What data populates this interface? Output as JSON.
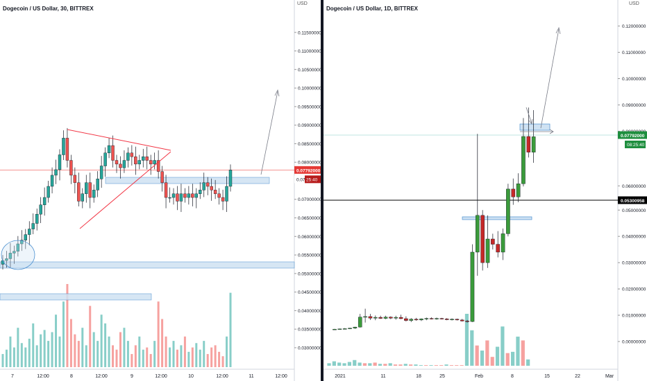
{
  "left_chart": {
    "title": "Dogecoin / US Dollar, 30, BITTREX",
    "currency": "USD",
    "price_label": "0.07792000",
    "countdown": "25:40",
    "countdown_prefix": "0.07",
    "colors": {
      "up": "#26a69a",
      "down": "#ef5350",
      "box_fill": "#cfe2f3",
      "box_stroke": "#4a8fd0",
      "pattern": "#f23645",
      "arrow": "#787b86"
    }
  },
  "right_chart": {
    "title": "Dogecoin / US Dollar, 1D, BITTREX",
    "currency": "USD",
    "price_label": "0.07792000",
    "countdown": "08:25:40",
    "level_label": "0.05300958",
    "colors": {
      "up": "#26a69a",
      "down": "#ef5350",
      "candle_up": "#3b9b3b",
      "candle_down": "#c62828",
      "box_fill": "#cfe2f3",
      "box_stroke": "#4a8fd0",
      "level_line": "#000000"
    }
  },
  "chart_data": [
    {
      "type": "candlestick",
      "title": "Dogecoin / US Dollar, 30, BITTREX",
      "x_tick_labels": [
        "7",
        "12:00",
        "8",
        "12:00",
        "9",
        "12:00",
        "10",
        "12:00",
        "11",
        "12:00"
      ],
      "y_tick_labels": [
        "0.11500000",
        "0.11000000",
        "0.10500000",
        "0.10000000",
        "0.09500000",
        "0.09000000",
        "0.08500000",
        "0.08000000",
        "0.07500000",
        "0.07000000",
        "0.06500000",
        "0.06000000",
        "0.05500000",
        "0.05000000",
        "0.04500000",
        "0.04000000",
        "0.03500000",
        "0.03000000"
      ],
      "ylim": [
        0.027,
        0.12
      ],
      "current_price": 0.07792,
      "close_series": [
        0.0535,
        0.054,
        0.0555,
        0.056,
        0.058,
        0.059,
        0.0605,
        0.062,
        0.0635,
        0.066,
        0.0685,
        0.0705,
        0.0735,
        0.0765,
        0.078,
        0.082,
        0.0865,
        0.0805,
        0.0765,
        0.0745,
        0.0695,
        0.0715,
        0.0745,
        0.0705,
        0.0725,
        0.0755,
        0.079,
        0.0825,
        0.0845,
        0.0805,
        0.0795,
        0.0785,
        0.0805,
        0.0825,
        0.0815,
        0.0795,
        0.0805,
        0.0815,
        0.0805,
        0.0795,
        0.0805,
        0.0775,
        0.0745,
        0.0705,
        0.0705,
        0.0715,
        0.0695,
        0.0715,
        0.0705,
        0.0715,
        0.0705,
        0.0715,
        0.0725,
        0.0745,
        0.0735,
        0.0725,
        0.0715,
        0.0705,
        0.0695,
        0.0735,
        0.0779
      ],
      "volume": [
        6,
        8,
        14,
        9,
        18,
        11,
        9,
        13,
        20,
        10,
        15,
        17,
        12,
        16,
        24,
        14,
        30,
        38,
        22,
        15,
        12,
        18,
        10,
        28,
        16,
        12,
        24,
        20,
        14,
        10,
        8,
        16,
        18,
        12,
        6,
        10,
        14,
        8,
        9,
        6,
        12,
        30,
        22,
        14,
        9,
        12,
        8,
        10,
        14,
        7,
        9,
        11,
        8,
        12,
        6,
        9,
        10,
        7,
        5,
        14,
        34
      ]
    },
    {
      "type": "candlestick",
      "title": "Dogecoin / US Dollar, 1D, BITTREX",
      "x_tick_labels": [
        "2021",
        "11",
        "18",
        "25",
        "Feb",
        "8",
        "15",
        "22",
        "Mar"
      ],
      "y_tick_labels": [
        "0.12000000",
        "0.11000000",
        "0.10000000",
        "0.09000000",
        "0.08000000",
        "0.06000000",
        "0.05000000",
        "0.04000000",
        "0.03000000",
        "0.02000000",
        "0.01000000",
        "0.00000000"
      ],
      "ylim": [
        -0.008,
        0.125
      ],
      "current_price": 0.07792,
      "level": 0.05300958,
      "candles": [
        {
          "o": 0.0047,
          "h": 0.0048,
          "l": 0.0046,
          "c": 0.0047
        },
        {
          "o": 0.0047,
          "h": 0.0049,
          "l": 0.0045,
          "c": 0.0048
        },
        {
          "o": 0.0048,
          "h": 0.0051,
          "l": 0.0046,
          "c": 0.0049
        },
        {
          "o": 0.0049,
          "h": 0.0052,
          "l": 0.0047,
          "c": 0.0051
        },
        {
          "o": 0.0051,
          "h": 0.0056,
          "l": 0.0048,
          "c": 0.0055
        },
        {
          "o": 0.0055,
          "h": 0.0105,
          "l": 0.0053,
          "c": 0.0093
        },
        {
          "o": 0.0093,
          "h": 0.0125,
          "l": 0.0072,
          "c": 0.0095
        },
        {
          "o": 0.0095,
          "h": 0.0105,
          "l": 0.0082,
          "c": 0.0089
        },
        {
          "o": 0.0089,
          "h": 0.0099,
          "l": 0.0081,
          "c": 0.0092
        },
        {
          "o": 0.0092,
          "h": 0.0098,
          "l": 0.0086,
          "c": 0.0088
        },
        {
          "o": 0.0088,
          "h": 0.0098,
          "l": 0.0085,
          "c": 0.0093
        },
        {
          "o": 0.0093,
          "h": 0.0096,
          "l": 0.0085,
          "c": 0.0089
        },
        {
          "o": 0.0089,
          "h": 0.0098,
          "l": 0.0083,
          "c": 0.0092
        },
        {
          "o": 0.0092,
          "h": 0.0102,
          "l": 0.0085,
          "c": 0.0087
        },
        {
          "o": 0.0087,
          "h": 0.0096,
          "l": 0.0076,
          "c": 0.008
        },
        {
          "o": 0.008,
          "h": 0.0089,
          "l": 0.0074,
          "c": 0.0085
        },
        {
          "o": 0.0085,
          "h": 0.009,
          "l": 0.0079,
          "c": 0.0082
        },
        {
          "o": 0.0082,
          "h": 0.0088,
          "l": 0.0078,
          "c": 0.0086
        },
        {
          "o": 0.0086,
          "h": 0.0091,
          "l": 0.0081,
          "c": 0.0088
        },
        {
          "o": 0.0088,
          "h": 0.0092,
          "l": 0.0084,
          "c": 0.0086
        },
        {
          "o": 0.0086,
          "h": 0.0091,
          "l": 0.0083,
          "c": 0.0088
        },
        {
          "o": 0.0088,
          "h": 0.009,
          "l": 0.0084,
          "c": 0.0086
        },
        {
          "o": 0.0086,
          "h": 0.0089,
          "l": 0.0081,
          "c": 0.0083
        },
        {
          "o": 0.0083,
          "h": 0.0088,
          "l": 0.008,
          "c": 0.0085
        },
        {
          "o": 0.0085,
          "h": 0.0087,
          "l": 0.008,
          "c": 0.0082
        },
        {
          "o": 0.0082,
          "h": 0.0086,
          "l": 0.0076,
          "c": 0.0078
        },
        {
          "o": 0.0078,
          "h": 0.0082,
          "l": 0.0072,
          "c": 0.0076
        },
        {
          "o": 0.0076,
          "h": 0.037,
          "l": 0.0074,
          "c": 0.034
        },
        {
          "o": 0.034,
          "h": 0.079,
          "l": 0.025,
          "c": 0.048
        },
        {
          "o": 0.048,
          "h": 0.05,
          "l": 0.027,
          "c": 0.03
        },
        {
          "o": 0.03,
          "h": 0.048,
          "l": 0.028,
          "c": 0.039
        },
        {
          "o": 0.039,
          "h": 0.041,
          "l": 0.035,
          "c": 0.037
        },
        {
          "o": 0.037,
          "h": 0.042,
          "l": 0.032,
          "c": 0.034
        },
        {
          "o": 0.034,
          "h": 0.043,
          "l": 0.031,
          "c": 0.041
        },
        {
          "o": 0.041,
          "h": 0.06,
          "l": 0.04,
          "c": 0.058
        },
        {
          "o": 0.058,
          "h": 0.062,
          "l": 0.052,
          "c": 0.055
        },
        {
          "o": 0.055,
          "h": 0.064,
          "l": 0.053,
          "c": 0.06
        },
        {
          "o": 0.06,
          "h": 0.085,
          "l": 0.059,
          "c": 0.078
        },
        {
          "o": 0.078,
          "h": 0.089,
          "l": 0.07,
          "c": 0.072
        },
        {
          "o": 0.072,
          "h": 0.088,
          "l": 0.068,
          "c": 0.0779
        }
      ],
      "volume": [
        4,
        7,
        5,
        4,
        6,
        9,
        5,
        4,
        4,
        5,
        3,
        3,
        4,
        2,
        2,
        3,
        2,
        2,
        1,
        1,
        1,
        1,
        1,
        2,
        1,
        1,
        1,
        82,
        56,
        32,
        24,
        40,
        14,
        30,
        62,
        20,
        22,
        46,
        40,
        10
      ]
    }
  ]
}
